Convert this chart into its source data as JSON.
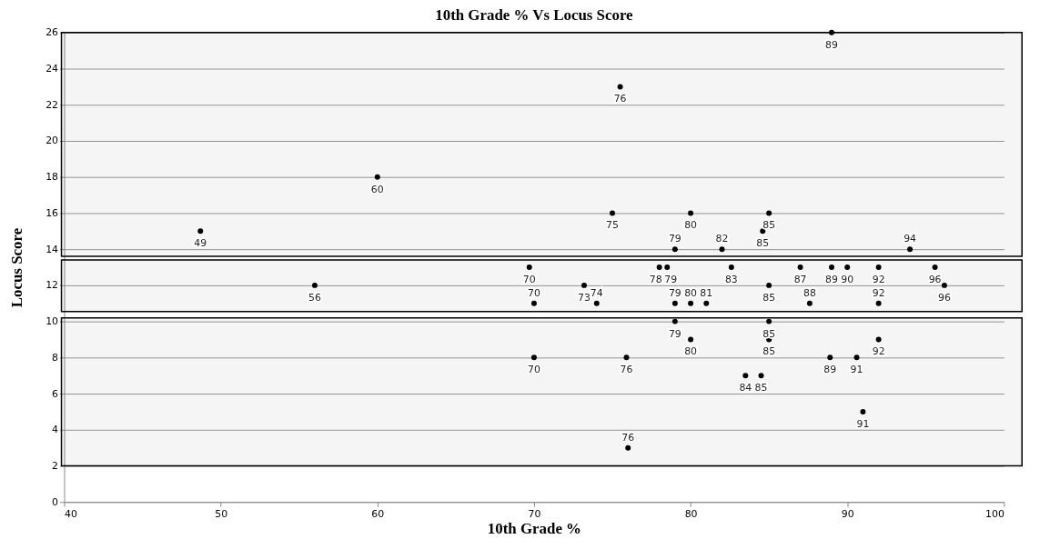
{
  "chart_data": {
    "type": "scatter",
    "title": "10th Grade % Vs Locus Score",
    "xlabel": "10th Grade %",
    "ylabel": "Locus Score",
    "xlim": [
      40,
      100
    ],
    "xticks": [
      40,
      50,
      60,
      70,
      80,
      90,
      100
    ],
    "ylim": [
      0,
      26
    ],
    "yticks": [
      0,
      2,
      4,
      6,
      8,
      10,
      12,
      14,
      16,
      18,
      20,
      22,
      24,
      26
    ],
    "grid": "y",
    "legend": false,
    "marker": "circle",
    "bands": [
      {
        "axis": "y",
        "from": 13.6,
        "to": 26,
        "label": null,
        "color": "#000000"
      },
      {
        "axis": "y",
        "from": 10.55,
        "to": 13.4,
        "label": null,
        "color": "#000000"
      },
      {
        "axis": "y",
        "from": 2,
        "to": 10.2,
        "label": null,
        "color": "#000000"
      }
    ],
    "series": [
      {
        "color": "#000000",
        "x": [
          48.7,
          60,
          56,
          75.5,
          89,
          75,
          80,
          85,
          84.6,
          79,
          82,
          94,
          69.7,
          78,
          78.5,
          82.6,
          87,
          89,
          90,
          92,
          95.6,
          96.2,
          73.2,
          85,
          74,
          79,
          80,
          81,
          87.6,
          92,
          70,
          79,
          85,
          80,
          85,
          92,
          70,
          75.9,
          88.9,
          90.6,
          83.5,
          84.5,
          91,
          76
        ],
        "values": [
          15,
          18,
          12,
          23,
          26,
          16,
          16,
          16,
          15,
          14,
          14,
          14,
          13,
          13,
          13,
          13,
          13,
          13,
          13,
          13,
          13,
          12,
          12,
          12,
          11,
          11,
          11,
          11,
          11,
          11,
          11,
          10,
          10,
          9,
          9,
          9,
          8,
          8,
          8,
          8,
          7,
          7,
          5,
          3
        ]
      }
    ],
    "annotations": [
      {
        "text": "49",
        "x": 48.7,
        "y": 15
      },
      {
        "text": "60",
        "x": 60,
        "y": 18
      },
      {
        "text": "56",
        "x": 56,
        "y": 12
      },
      {
        "text": "76",
        "x": 75.5,
        "y": 23
      },
      {
        "text": "89",
        "x": 89,
        "y": 26
      },
      {
        "text": "75",
        "x": 75,
        "y": 16
      },
      {
        "text": "80",
        "x": 80,
        "y": 16
      },
      {
        "text": "85",
        "x": 85,
        "y": 16
      },
      {
        "text": "85",
        "x": 84.6,
        "y": 15
      },
      {
        "text": "79",
        "x": 79,
        "y": 14
      },
      {
        "text": "82",
        "x": 82,
        "y": 14
      },
      {
        "text": "94",
        "x": 94,
        "y": 14
      },
      {
        "text": "70",
        "x": 69.7,
        "y": 13
      },
      {
        "text": "78",
        "x": 78,
        "y": 13
      },
      {
        "text": "79",
        "x": 78.5,
        "y": 13
      },
      {
        "text": "83",
        "x": 82.6,
        "y": 13
      },
      {
        "text": "87",
        "x": 87,
        "y": 13
      },
      {
        "text": "89",
        "x": 89,
        "y": 13
      },
      {
        "text": "90",
        "x": 90,
        "y": 13
      },
      {
        "text": "92",
        "x": 92,
        "y": 13
      },
      {
        "text": "96",
        "x": 95.6,
        "y": 13
      },
      {
        "text": "96",
        "x": 96.2,
        "y": 12
      },
      {
        "text": "73",
        "x": 73.2,
        "y": 12
      },
      {
        "text": "85",
        "x": 85,
        "y": 12
      },
      {
        "text": "74",
        "x": 74,
        "y": 11
      },
      {
        "text": "79",
        "x": 79,
        "y": 11
      },
      {
        "text": "80",
        "x": 80,
        "y": 11
      },
      {
        "text": "81",
        "x": 81,
        "y": 11
      },
      {
        "text": "88",
        "x": 87.6,
        "y": 11
      },
      {
        "text": "92",
        "x": 92,
        "y": 11
      },
      {
        "text": "70",
        "x": 70,
        "y": 11
      },
      {
        "text": "79",
        "x": 79,
        "y": 10
      },
      {
        "text": "85",
        "x": 85,
        "y": 10
      },
      {
        "text": "80",
        "x": 80,
        "y": 9
      },
      {
        "text": "85",
        "x": 85,
        "y": 9
      },
      {
        "text": "92",
        "x": 92,
        "y": 9
      },
      {
        "text": "70",
        "x": 70,
        "y": 8
      },
      {
        "text": "76",
        "x": 75.9,
        "y": 8
      },
      {
        "text": "89",
        "x": 88.9,
        "y": 8
      },
      {
        "text": "91",
        "x": 90.6,
        "y": 8
      },
      {
        "text": "84",
        "x": 83.5,
        "y": 7
      },
      {
        "text": "85",
        "x": 84.5,
        "y": 7
      },
      {
        "text": "91",
        "x": 91,
        "y": 5
      },
      {
        "text": "76",
        "x": 76,
        "y": 3
      }
    ]
  }
}
